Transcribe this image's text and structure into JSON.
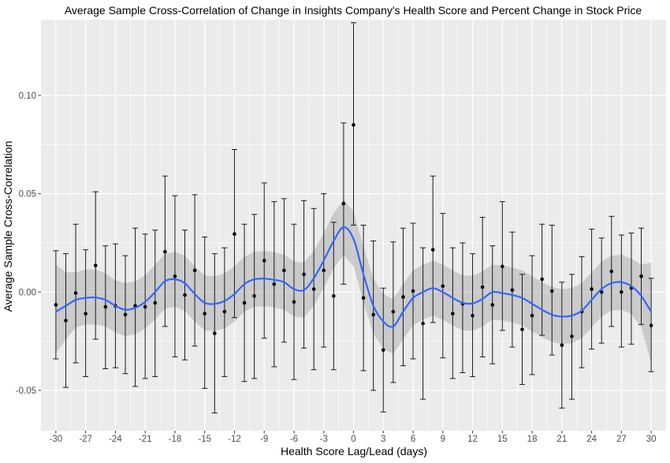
{
  "chart_data": {
    "type": "scatter",
    "title": "Average Sample Cross-Correlation of Change in Insights Company's Health Score and Percent Change in Stock Price",
    "xlabel": "Health Score Lag/Lead (days)",
    "ylabel": "Average Sample Cross-Correlation",
    "xlim": [
      -31.5,
      31.5
    ],
    "ylim": [
      -0.0705,
      0.1385
    ],
    "x_ticks": [
      -30,
      -27,
      -24,
      -21,
      -18,
      -15,
      -12,
      -9,
      -6,
      -3,
      0,
      3,
      6,
      9,
      12,
      15,
      18,
      21,
      24,
      27,
      30
    ],
    "y_ticks": [
      -0.05,
      0.0,
      0.05,
      0.1
    ],
    "y_tick_labels": [
      "-0.05",
      "0.00",
      "0.05",
      "0.10"
    ],
    "grid": true,
    "background": "#ebebeb",
    "gridline_color": "#ffffff",
    "point_color": "#000000",
    "smooth_color": "#3366ff",
    "band_color": "#999999",
    "points": [
      {
        "x": -30,
        "y": -0.0065,
        "ymin": -0.034,
        "ymax": 0.021
      },
      {
        "x": -29,
        "y": -0.0145,
        "ymin": -0.0485,
        "ymax": 0.0195
      },
      {
        "x": -28,
        "y": -0.0005,
        "ymin": -0.036,
        "ymax": 0.0345
      },
      {
        "x": -27,
        "y": -0.011,
        "ymin": -0.043,
        "ymax": 0.0215
      },
      {
        "x": -26,
        "y": 0.0135,
        "ymin": -0.024,
        "ymax": 0.051
      },
      {
        "x": -25,
        "y": -0.0075,
        "ymin": -0.039,
        "ymax": 0.0235
      },
      {
        "x": -24,
        "y": -0.007,
        "ymin": -0.0385,
        "ymax": 0.0245
      },
      {
        "x": -23,
        "y": -0.0115,
        "ymin": -0.0415,
        "ymax": 0.0185
      },
      {
        "x": -22,
        "y": -0.007,
        "ymin": -0.048,
        "ymax": 0.0325
      },
      {
        "x": -21,
        "y": -0.0075,
        "ymin": -0.044,
        "ymax": 0.0295
      },
      {
        "x": -20,
        "y": -0.0055,
        "ymin": -0.043,
        "ymax": 0.0315
      },
      {
        "x": -19,
        "y": 0.0205,
        "ymin": -0.0175,
        "ymax": 0.059
      },
      {
        "x": -18,
        "y": 0.008,
        "ymin": -0.033,
        "ymax": 0.049
      },
      {
        "x": -17,
        "y": -0.0015,
        "ymin": -0.0345,
        "ymax": 0.0315
      },
      {
        "x": -16,
        "y": 0.011,
        "ymin": -0.0275,
        "ymax": 0.0495
      },
      {
        "x": -15,
        "y": -0.011,
        "ymin": -0.049,
        "ymax": 0.028
      },
      {
        "x": -14,
        "y": -0.021,
        "ymin": -0.0615,
        "ymax": 0.0195
      },
      {
        "x": -13,
        "y": -0.01,
        "ymin": -0.043,
        "ymax": 0.0225
      },
      {
        "x": -12,
        "y": 0.0295,
        "ymin": -0.013,
        "ymax": 0.0725
      },
      {
        "x": -11,
        "y": -0.0055,
        "ymin": -0.0455,
        "ymax": 0.0345
      },
      {
        "x": -10,
        "y": -0.002,
        "ymin": -0.044,
        "ymax": 0.0395
      },
      {
        "x": -9,
        "y": 0.016,
        "ymin": -0.0235,
        "ymax": 0.0555
      },
      {
        "x": -8,
        "y": 0.004,
        "ymin": -0.038,
        "ymax": 0.046
      },
      {
        "x": -7,
        "y": 0.011,
        "ymin": -0.0255,
        "ymax": 0.0475
      },
      {
        "x": -6,
        "y": -0.005,
        "ymin": -0.0445,
        "ymax": 0.0345
      },
      {
        "x": -5,
        "y": 0.009,
        "ymin": -0.0285,
        "ymax": 0.0465
      },
      {
        "x": -4,
        "y": 0.0015,
        "ymin": -0.0395,
        "ymax": 0.0425
      },
      {
        "x": -3,
        "y": 0.011,
        "ymin": -0.028,
        "ymax": 0.05
      },
      {
        "x": -2,
        "y": -0.002,
        "ymin": -0.0395,
        "ymax": 0.0355
      },
      {
        "x": -1,
        "y": 0.045,
        "ymin": 0.004,
        "ymax": 0.086
      },
      {
        "x": 0,
        "y": 0.085,
        "ymin": 0.034,
        "ymax": 0.137
      },
      {
        "x": 1,
        "y": -0.003,
        "ymin": -0.04,
        "ymax": 0.034
      },
      {
        "x": 2,
        "y": -0.0115,
        "ymin": -0.05,
        "ymax": 0.026
      },
      {
        "x": 3,
        "y": -0.0295,
        "ymin": -0.061,
        "ymax": 0.002
      },
      {
        "x": 4,
        "y": -0.01,
        "ymin": -0.046,
        "ymax": 0.0255
      },
      {
        "x": 5,
        "y": -0.0025,
        "ymin": -0.0375,
        "ymax": 0.0325
      },
      {
        "x": 6,
        "y": 0.0005,
        "ymin": -0.034,
        "ymax": 0.035
      },
      {
        "x": 7,
        "y": -0.016,
        "ymin": -0.0545,
        "ymax": 0.0225
      },
      {
        "x": 8,
        "y": 0.0215,
        "ymin": -0.0155,
        "ymax": 0.059
      },
      {
        "x": 9,
        "y": 0.003,
        "ymin": -0.0335,
        "ymax": 0.04
      },
      {
        "x": 10,
        "y": -0.011,
        "ymin": -0.044,
        "ymax": 0.0225
      },
      {
        "x": 11,
        "y": -0.006,
        "ymin": -0.041,
        "ymax": 0.025
      },
      {
        "x": 12,
        "y": -0.012,
        "ymin": -0.043,
        "ymax": 0.0195
      },
      {
        "x": 13,
        "y": 0.0025,
        "ymin": -0.033,
        "ymax": 0.038
      },
      {
        "x": 14,
        "y": -0.0065,
        "ymin": -0.0365,
        "ymax": 0.0235
      },
      {
        "x": 15,
        "y": 0.013,
        "ymin": -0.0195,
        "ymax": 0.046
      },
      {
        "x": 16,
        "y": 0.001,
        "ymin": -0.028,
        "ymax": 0.0305
      },
      {
        "x": 17,
        "y": -0.019,
        "ymin": -0.047,
        "ymax": 0.009
      },
      {
        "x": 18,
        "y": -0.012,
        "ymin": -0.042,
        "ymax": 0.0185
      },
      {
        "x": 19,
        "y": 0.0065,
        "ymin": -0.022,
        "ymax": 0.0345
      },
      {
        "x": 20,
        "y": 0.0005,
        "ymin": -0.032,
        "ymax": 0.034
      },
      {
        "x": 21,
        "y": -0.027,
        "ymin": -0.059,
        "ymax": 0.005
      },
      {
        "x": 22,
        "y": -0.0225,
        "ymin": -0.0545,
        "ymax": 0.009
      },
      {
        "x": 23,
        "y": -0.01,
        "ymin": -0.0385,
        "ymax": 0.018
      },
      {
        "x": 24,
        "y": 0.0015,
        "ymin": -0.029,
        "ymax": 0.032
      },
      {
        "x": 25,
        "y": 0.0,
        "ymin": -0.026,
        "ymax": 0.0275
      },
      {
        "x": 26,
        "y": 0.0105,
        "ymin": -0.0175,
        "ymax": 0.0385
      },
      {
        "x": 27,
        "y": 0.0,
        "ymin": -0.028,
        "ymax": 0.029
      },
      {
        "x": 28,
        "y": 0.002,
        "ymin": -0.0265,
        "ymax": 0.03
      },
      {
        "x": 29,
        "y": 0.008,
        "ymin": -0.0165,
        "ymax": 0.0325
      },
      {
        "x": 30,
        "y": -0.017,
        "ymin": -0.0405,
        "ymax": 0.007
      }
    ],
    "smooth": [
      {
        "x": -30,
        "y": -0.01,
        "lo": -0.031,
        "hi": 0.014
      },
      {
        "x": -29,
        "y": -0.007,
        "lo": -0.024,
        "hi": 0.01
      },
      {
        "x": -28,
        "y": -0.004,
        "lo": -0.018,
        "hi": 0.01
      },
      {
        "x": -27,
        "y": -0.003,
        "lo": -0.0165,
        "hi": 0.0115
      },
      {
        "x": -26,
        "y": -0.0028,
        "lo": -0.0165,
        "hi": 0.0115
      },
      {
        "x": -25,
        "y": -0.004,
        "lo": -0.0175,
        "hi": 0.0095
      },
      {
        "x": -24,
        "y": -0.007,
        "lo": -0.0205,
        "hi": 0.006
      },
      {
        "x": -23,
        "y": -0.009,
        "lo": -0.0225,
        "hi": 0.0045
      },
      {
        "x": -22,
        "y": -0.008,
        "lo": -0.0215,
        "hi": 0.0055
      },
      {
        "x": -21,
        "y": -0.005,
        "lo": -0.0185,
        "hi": 0.0085
      },
      {
        "x": -20,
        "y": 0.0,
        "lo": -0.014,
        "hi": 0.014
      },
      {
        "x": -19,
        "y": 0.0055,
        "lo": -0.0085,
        "hi": 0.0195
      },
      {
        "x": -18,
        "y": 0.0065,
        "lo": -0.0075,
        "hi": 0.0205
      },
      {
        "x": -17,
        "y": 0.0045,
        "lo": -0.0095,
        "hi": 0.0185
      },
      {
        "x": -16,
        "y": -0.001,
        "lo": -0.015,
        "hi": 0.013
      },
      {
        "x": -15,
        "y": -0.0055,
        "lo": -0.0195,
        "hi": 0.0085
      },
      {
        "x": -14,
        "y": -0.006,
        "lo": -0.02,
        "hi": 0.008
      },
      {
        "x": -13,
        "y": -0.0045,
        "lo": -0.0185,
        "hi": 0.0095
      },
      {
        "x": -12,
        "y": -0.001,
        "lo": -0.015,
        "hi": 0.013
      },
      {
        "x": -11,
        "y": 0.004,
        "lo": -0.01,
        "hi": 0.018
      },
      {
        "x": -10,
        "y": 0.0065,
        "lo": -0.0075,
        "hi": 0.0205
      },
      {
        "x": -9,
        "y": 0.0068,
        "lo": -0.0072,
        "hi": 0.0208
      },
      {
        "x": -8,
        "y": 0.0062,
        "lo": -0.0078,
        "hi": 0.0202
      },
      {
        "x": -7,
        "y": 0.005,
        "lo": -0.009,
        "hi": 0.019
      },
      {
        "x": -6,
        "y": 0.0015,
        "lo": -0.0125,
        "hi": 0.0155
      },
      {
        "x": -5,
        "y": 0.001,
        "lo": -0.013,
        "hi": 0.015
      },
      {
        "x": -4,
        "y": 0.007,
        "lo": -0.007,
        "hi": 0.021
      },
      {
        "x": -3,
        "y": 0.016,
        "lo": 0.002,
        "hi": 0.03
      },
      {
        "x": -2,
        "y": 0.026,
        "lo": 0.012,
        "hi": 0.04
      },
      {
        "x": -1,
        "y": 0.033,
        "lo": 0.019,
        "hi": 0.047
      },
      {
        "x": 0,
        "y": 0.027,
        "lo": 0.013,
        "hi": 0.041
      },
      {
        "x": 1,
        "y": 0.009,
        "lo": -0.005,
        "hi": 0.023
      },
      {
        "x": 2,
        "y": -0.007,
        "lo": -0.021,
        "hi": 0.007
      },
      {
        "x": 3,
        "y": -0.015,
        "lo": -0.029,
        "hi": -0.001
      },
      {
        "x": 4,
        "y": -0.0175,
        "lo": -0.0315,
        "hi": -0.0035
      },
      {
        "x": 5,
        "y": -0.01,
        "lo": -0.024,
        "hi": 0.004
      },
      {
        "x": 6,
        "y": -0.003,
        "lo": -0.017,
        "hi": 0.011
      },
      {
        "x": 7,
        "y": 0.0,
        "lo": -0.014,
        "hi": 0.014
      },
      {
        "x": 8,
        "y": 0.002,
        "lo": -0.012,
        "hi": 0.016
      },
      {
        "x": 9,
        "y": 0.0,
        "lo": -0.014,
        "hi": 0.014
      },
      {
        "x": 10,
        "y": -0.003,
        "lo": -0.017,
        "hi": 0.011
      },
      {
        "x": 11,
        "y": -0.0055,
        "lo": -0.0195,
        "hi": 0.0085
      },
      {
        "x": 12,
        "y": -0.0058,
        "lo": -0.0198,
        "hi": 0.0082
      },
      {
        "x": 13,
        "y": -0.0035,
        "lo": -0.0175,
        "hi": 0.0105
      },
      {
        "x": 14,
        "y": 0.0,
        "lo": -0.014,
        "hi": 0.014
      },
      {
        "x": 15,
        "y": -0.0005,
        "lo": -0.0145,
        "hi": 0.0135
      },
      {
        "x": 16,
        "y": -0.0015,
        "lo": -0.0155,
        "hi": 0.0125
      },
      {
        "x": 17,
        "y": -0.003,
        "lo": -0.017,
        "hi": 0.011
      },
      {
        "x": 18,
        "y": -0.006,
        "lo": -0.02,
        "hi": 0.008
      },
      {
        "x": 19,
        "y": -0.009,
        "lo": -0.023,
        "hi": 0.005
      },
      {
        "x": 20,
        "y": -0.0115,
        "lo": -0.0255,
        "hi": 0.0025
      },
      {
        "x": 21,
        "y": -0.0125,
        "lo": -0.0265,
        "hi": 0.0015
      },
      {
        "x": 22,
        "y": -0.012,
        "lo": -0.026,
        "hi": 0.002
      },
      {
        "x": 23,
        "y": -0.0095,
        "lo": -0.0235,
        "hi": 0.0045
      },
      {
        "x": 24,
        "y": -0.004,
        "lo": -0.018,
        "hi": 0.01
      },
      {
        "x": 25,
        "y": 0.0015,
        "lo": -0.0125,
        "hi": 0.0155
      },
      {
        "x": 26,
        "y": 0.0045,
        "lo": -0.0095,
        "hi": 0.0185
      },
      {
        "x": 27,
        "y": 0.005,
        "lo": -0.009,
        "hi": 0.019
      },
      {
        "x": 28,
        "y": 0.003,
        "lo": -0.011,
        "hi": 0.017
      },
      {
        "x": 29,
        "y": -0.002,
        "lo": -0.018,
        "hi": 0.014
      },
      {
        "x": 30,
        "y": -0.01,
        "lo": -0.036,
        "hi": 0.015
      }
    ]
  }
}
